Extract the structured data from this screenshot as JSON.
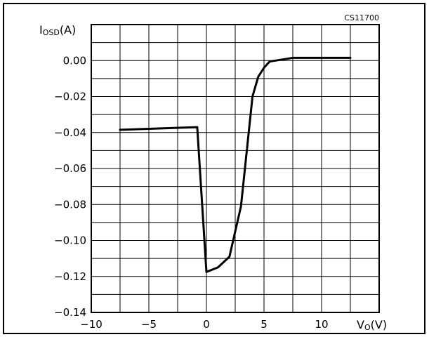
{
  "chart_data": {
    "type": "line",
    "title": "",
    "code": "CS11700",
    "ylabel": {
      "main": "I",
      "sub": "OSD",
      "unit": "(A)"
    },
    "xlabel": {
      "main": "V",
      "sub": "O",
      "unit": "(V)"
    },
    "xlim": [
      -10,
      15
    ],
    "ylim": [
      -0.14,
      0.02
    ],
    "x_ticks": [
      -10,
      -5,
      0,
      5,
      10
    ],
    "x_tick_labels": [
      "−10",
      "−5",
      "0",
      "5",
      "10"
    ],
    "y_ticks": [
      0.0,
      -0.02,
      -0.04,
      -0.06,
      -0.08,
      -0.1,
      -0.12,
      -0.14
    ],
    "y_tick_labels": [
      "0.00",
      "−0.02",
      "−0.04",
      "−0.06",
      "−0.08",
      "−0.10",
      "−0.12",
      "−0.14"
    ],
    "grid": true,
    "series": [
      {
        "x": [
          -7.5,
          -0.8,
          0.0,
          1.0,
          2.0,
          3.0,
          4.0,
          4.5,
          5.0,
          5.5,
          6.0,
          7.0,
          7.5,
          12.5
        ],
        "y": [
          -0.0385,
          -0.037,
          -0.1175,
          -0.115,
          -0.109,
          -0.081,
          -0.02,
          -0.009,
          -0.004,
          -0.0005,
          0.0,
          0.001,
          0.0015,
          0.0015
        ]
      }
    ]
  }
}
